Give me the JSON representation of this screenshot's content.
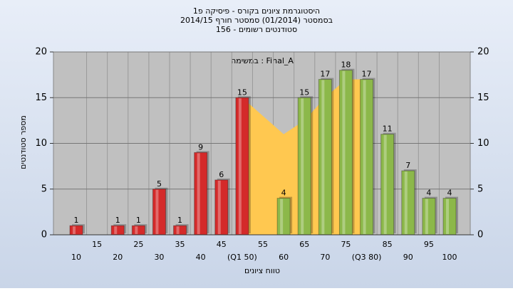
{
  "chart_data": {
    "type": "bar",
    "title": "היסטוגרמת ציונים בקורס - פיסיקה פ1",
    "subtitle": "בסמסטר (01/2014) סמסטר חורף 2014/15",
    "subtitle2": "סטודנטים רשומים - 156",
    "annotation": "במשימה : Final_A",
    "x_label": "טווח ציונים",
    "y_label": "מספר סטודנטים",
    "categories": [
      "10",
      "15",
      "20",
      "25",
      "30",
      "35",
      "40",
      "45",
      "(Q1 50)",
      "55",
      "60",
      "65",
      "70",
      "75",
      "(Q3 80)",
      "85",
      "90",
      "95",
      "100"
    ],
    "values": [
      1,
      null,
      1,
      1,
      5,
      1,
      9,
      6,
      15,
      null,
      4,
      15,
      17,
      18,
      17,
      11,
      7,
      4,
      4
    ],
    "colors": [
      "#d42a2a",
      "#d42a2a",
      "#d42a2a",
      "#d42a2a",
      "#d42a2a",
      "#d42a2a",
      "#d42a2a",
      "#d42a2a",
      "#d42a2a",
      "#d42a2a",
      "#8cb84a",
      "#8cb84a",
      "#8cb84a",
      "#8cb84a",
      "#8cb84a",
      "#8cb84a",
      "#8cb84a",
      "#8cb84a",
      "#8cb84a"
    ],
    "quartile_area": [
      null,
      null,
      null,
      null,
      null,
      null,
      null,
      null,
      15,
      13,
      11,
      12.5,
      15,
      17,
      17,
      null,
      null,
      null,
      null
    ],
    "area_color": "#ffc850",
    "ylim": [
      0,
      20
    ],
    "yticks": [
      0,
      5,
      10,
      15,
      20
    ],
    "y2lim": [
      0,
      20
    ],
    "y2ticks": [
      0,
      5,
      10,
      15,
      20
    ],
    "grid": true
  }
}
